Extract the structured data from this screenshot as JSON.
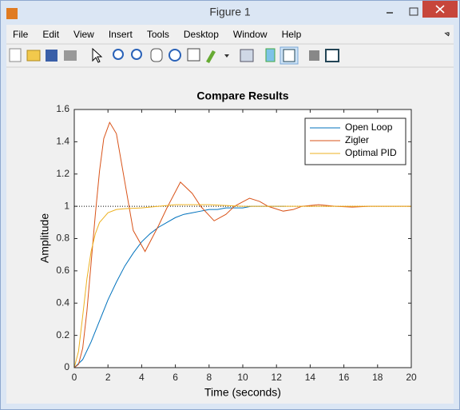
{
  "window": {
    "title": "Figure 1"
  },
  "menu": [
    "File",
    "Edit",
    "View",
    "Insert",
    "Tools",
    "Desktop",
    "Window",
    "Help"
  ],
  "chart_data": {
    "type": "line",
    "title": "Compare Results",
    "x_label": "Time (seconds)",
    "y_label": "Amplitude",
    "xlim": [
      0,
      20
    ],
    "ylim": [
      0,
      1.6
    ],
    "xticks": [
      0,
      2,
      4,
      6,
      8,
      10,
      12,
      14,
      16,
      18,
      20
    ],
    "yticks": [
      0,
      0.2,
      0.4,
      0.6,
      0.8,
      1,
      1.2,
      1.4,
      1.6
    ],
    "legend": "northeast",
    "reference": 1,
    "series": [
      {
        "name": "Open Loop",
        "color": "#0072bd",
        "x": [
          0,
          0.5,
          1,
          1.5,
          2,
          2.5,
          3,
          3.5,
          4,
          4.5,
          5,
          5.5,
          6,
          6.5,
          7,
          7.5,
          8,
          8.5,
          9,
          9.5,
          10,
          10.5,
          11,
          11.5,
          12,
          12.5
        ],
        "values": [
          0,
          0.05,
          0.16,
          0.29,
          0.42,
          0.53,
          0.63,
          0.71,
          0.78,
          0.83,
          0.87,
          0.9,
          0.93,
          0.95,
          0.96,
          0.97,
          0.98,
          0.98,
          0.99,
          0.99,
          0.99,
          1.0,
          1.0,
          1.0,
          1.0,
          1.0
        ]
      },
      {
        "name": "Zigler",
        "color": "#d95319",
        "x": [
          0,
          0.25,
          0.5,
          0.75,
          1,
          1.25,
          1.5,
          1.75,
          2.1,
          2.5,
          3,
          3.5,
          4.2,
          5,
          5.5,
          6.3,
          7,
          7.5,
          8.3,
          9,
          9.5,
          10.4,
          11,
          11.5,
          12.4,
          13,
          13.5,
          14.5,
          15.5,
          16.5,
          17.5,
          18.5,
          20
        ],
        "values": [
          0,
          0.02,
          0.12,
          0.35,
          0.65,
          0.95,
          1.22,
          1.42,
          1.52,
          1.45,
          1.15,
          0.85,
          0.72,
          0.88,
          0.99,
          1.15,
          1.08,
          1.0,
          0.91,
          0.95,
          1.0,
          1.05,
          1.03,
          1.0,
          0.97,
          0.98,
          1.0,
          1.01,
          1.0,
          0.995,
          1.0,
          1.0,
          1.0
        ]
      },
      {
        "name": "Optimal PID",
        "color": "#edb120",
        "x": [
          0,
          0.25,
          0.5,
          0.75,
          1,
          1.25,
          1.5,
          2,
          2.5,
          3,
          4,
          5,
          6,
          7,
          8,
          9,
          10,
          12,
          14,
          16,
          18,
          20
        ],
        "values": [
          0,
          0.1,
          0.32,
          0.55,
          0.72,
          0.83,
          0.9,
          0.96,
          0.98,
          0.985,
          0.99,
          1.0,
          1.01,
          1.01,
          1.01,
          1.005,
          1.0,
          1.0,
          1.0,
          1.0,
          1.0,
          1.0
        ]
      }
    ]
  }
}
